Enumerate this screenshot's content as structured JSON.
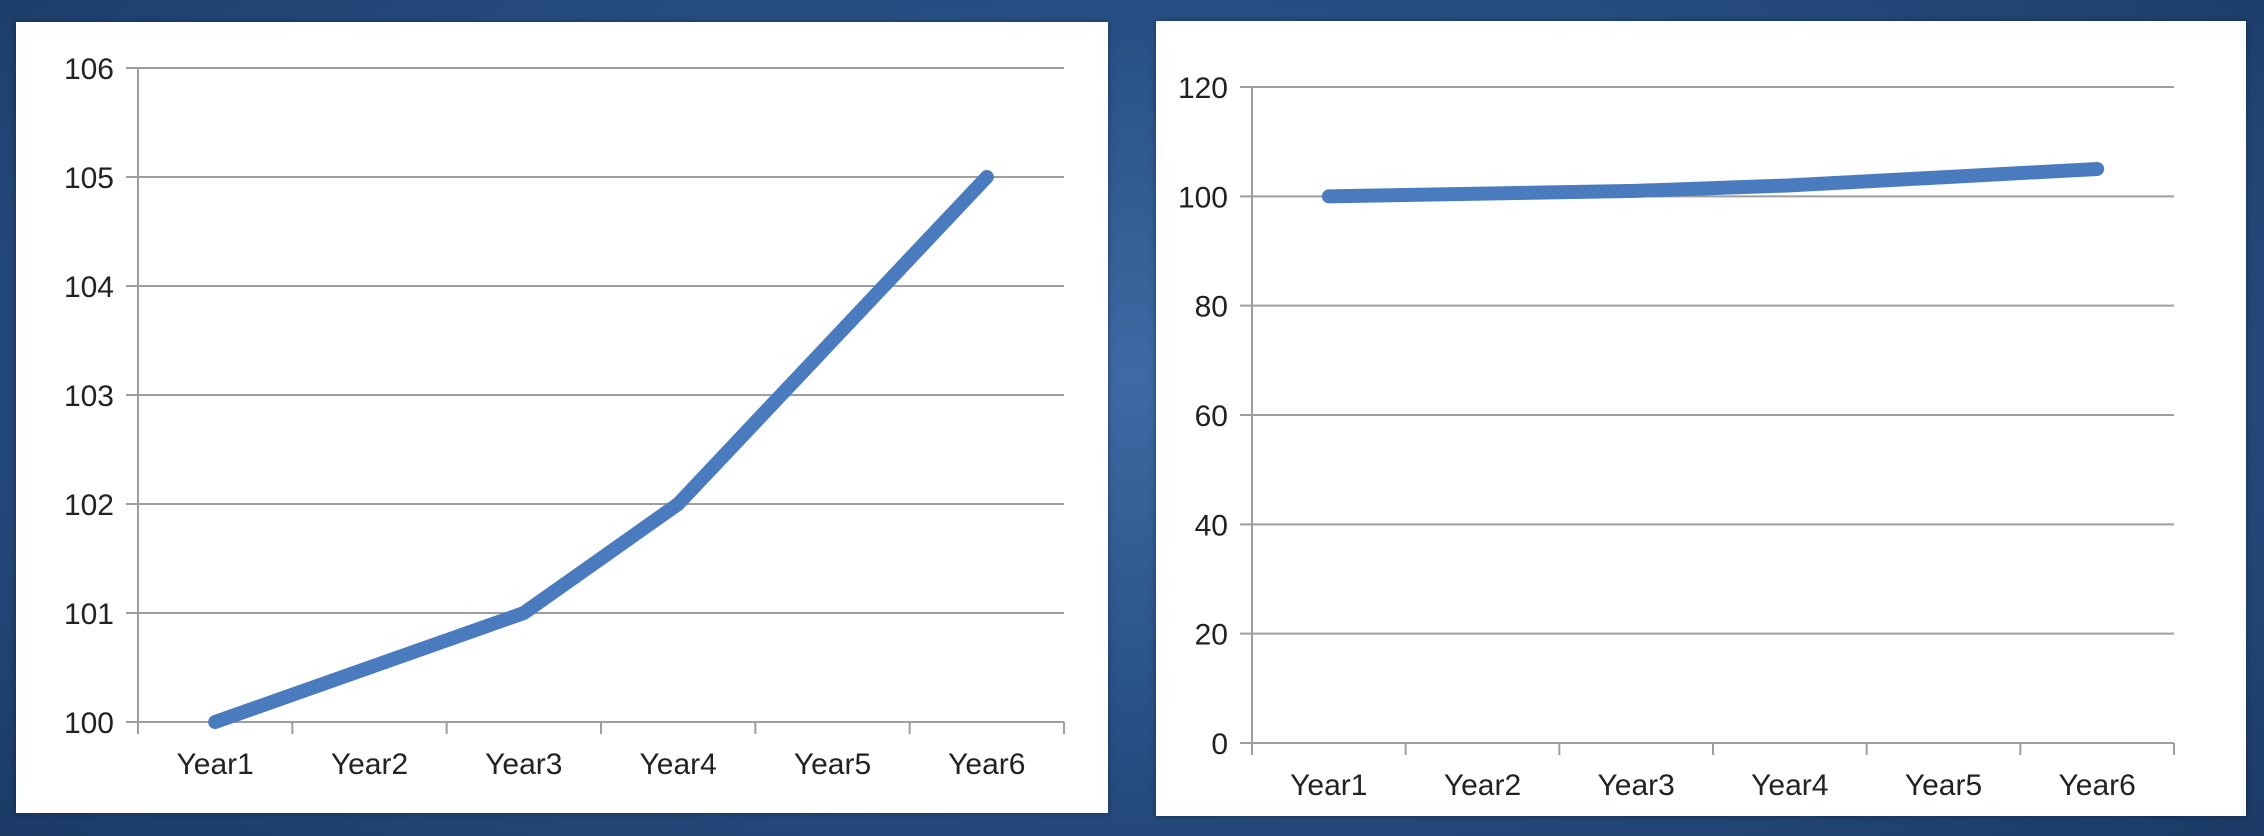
{
  "colors": {
    "line": "#4a7bbf",
    "grid": "#9e9e9e",
    "panel_background": "#ffffff",
    "page_background": "#2b548a"
  },
  "chart_data": [
    {
      "type": "line",
      "categories": [
        "Year1",
        "Year2",
        "Year3",
        "Year4",
        "Year5",
        "Year6"
      ],
      "series": [
        {
          "values": [
            100,
            100.5,
            101,
            102,
            103.5,
            105
          ]
        }
      ],
      "y_ticks": [
        "100",
        "101",
        "102",
        "103",
        "104",
        "105",
        "106"
      ],
      "ylim": [
        100,
        106
      ],
      "grid": true,
      "title": "",
      "xlabel": "",
      "ylabel": ""
    },
    {
      "type": "line",
      "categories": [
        "Year1",
        "Year2",
        "Year3",
        "Year4",
        "Year5",
        "Year6"
      ],
      "series": [
        {
          "values": [
            100,
            100.5,
            101,
            102,
            103.5,
            105
          ]
        }
      ],
      "y_ticks": [
        "0",
        "20",
        "40",
        "60",
        "80",
        "100",
        "120"
      ],
      "ylim": [
        0,
        120
      ],
      "grid": true,
      "title": "",
      "xlabel": "",
      "ylabel": ""
    }
  ]
}
